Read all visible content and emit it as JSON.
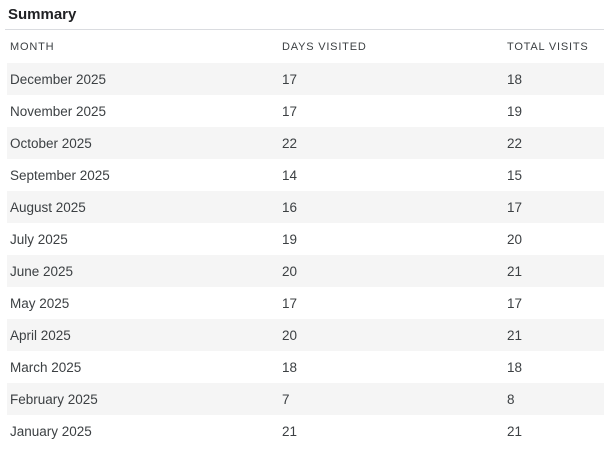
{
  "title": "Summary",
  "table": {
    "columns": [
      {
        "id": "month",
        "label": "MONTH"
      },
      {
        "id": "days_visited",
        "label": "DAYS VISITED"
      },
      {
        "id": "total_visits",
        "label": "TOTAL VISITS"
      }
    ],
    "rows": [
      {
        "month": "December 2025",
        "days_visited": 17,
        "total_visits": 18
      },
      {
        "month": "November 2025",
        "days_visited": 17,
        "total_visits": 19
      },
      {
        "month": "October 2025",
        "days_visited": 22,
        "total_visits": 22
      },
      {
        "month": "September 2025",
        "days_visited": 14,
        "total_visits": 15
      },
      {
        "month": "August 2025",
        "days_visited": 16,
        "total_visits": 17
      },
      {
        "month": "July 2025",
        "days_visited": 19,
        "total_visits": 20
      },
      {
        "month": "June 2025",
        "days_visited": 20,
        "total_visits": 21
      },
      {
        "month": "May 2025",
        "days_visited": 17,
        "total_visits": 17
      },
      {
        "month": "April 2025",
        "days_visited": 20,
        "total_visits": 21
      },
      {
        "month": "March 2025",
        "days_visited": 18,
        "total_visits": 18
      },
      {
        "month": "February 2025",
        "days_visited": 7,
        "total_visits": 8
      },
      {
        "month": "January 2025",
        "days_visited": 21,
        "total_visits": 21
      }
    ]
  },
  "colors": {
    "background": "#ffffff",
    "row_stripe": "#f5f5f5",
    "divider": "#dadce0",
    "title_text": "#202124",
    "header_text": "#3c4043",
    "row_text": "#3c4043"
  }
}
